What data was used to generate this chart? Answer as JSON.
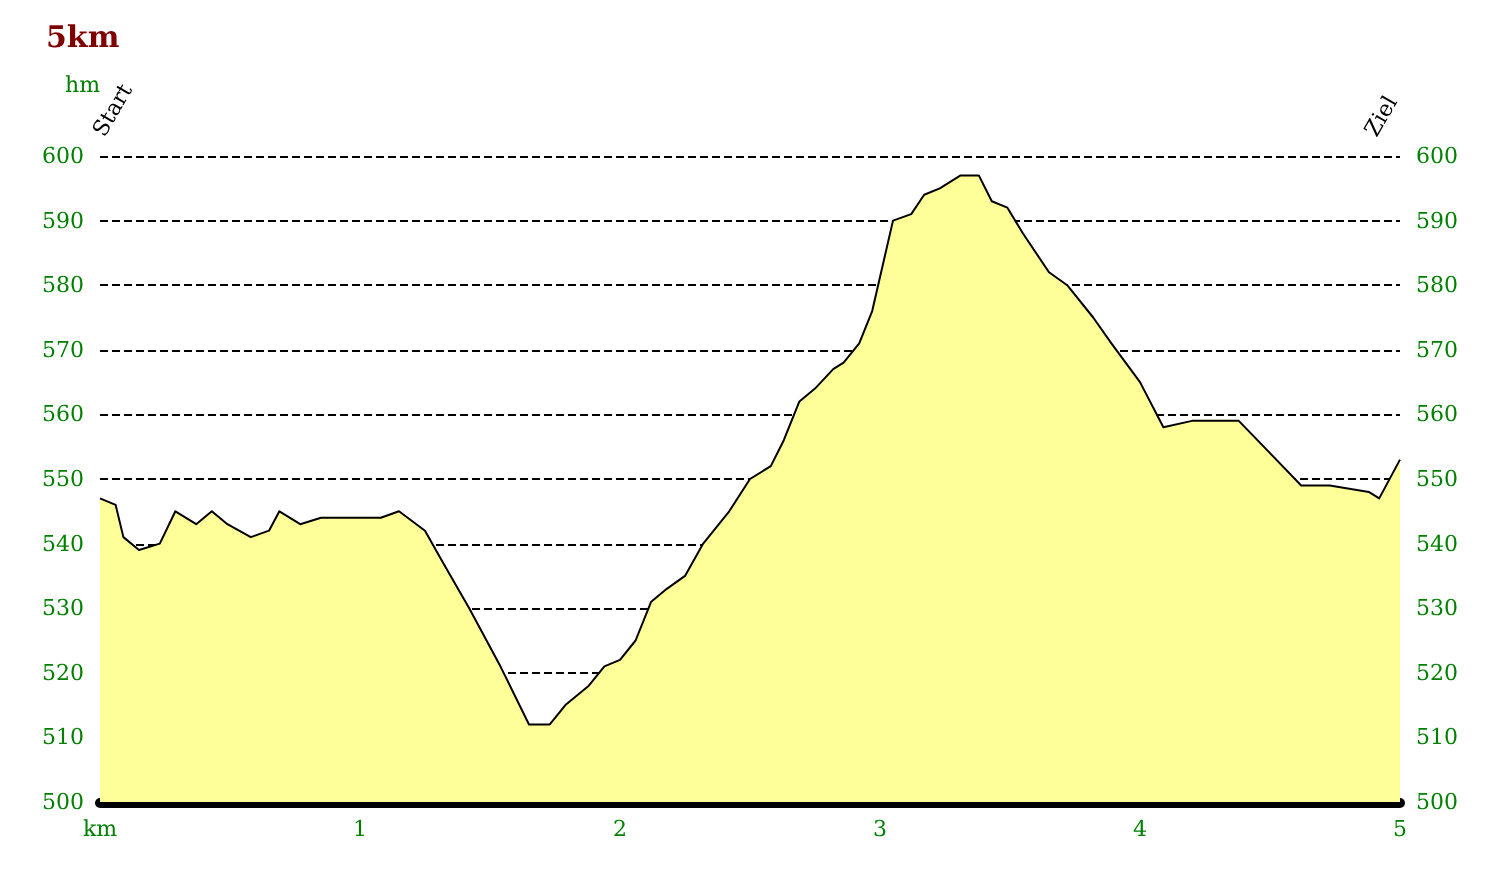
{
  "chart_data": {
    "type": "area",
    "title": "5km",
    "ylabel": "hm",
    "annotations": [
      "Start",
      "Ziel"
    ],
    "series": [
      {
        "color": "#ffff99",
        "x": [
          0,
          0.06,
          0.09,
          0.15,
          0.23,
          0.29,
          0.37,
          0.43,
          0.49,
          0.58,
          0.65,
          0.69,
          0.77,
          0.85,
          0.97,
          1.08,
          1.15,
          1.25,
          1.32,
          1.42,
          1.54,
          1.65,
          1.73,
          1.79,
          1.88,
          1.94,
          2.0,
          2.06,
          2.12,
          2.18,
          2.25,
          2.32,
          2.42,
          2.5,
          2.58,
          2.63,
          2.69,
          2.75,
          2.82,
          2.86,
          2.92,
          2.97,
          3.05,
          3.12,
          3.17,
          3.23,
          3.31,
          3.38,
          3.43,
          3.49,
          3.55,
          3.65,
          3.72,
          3.82,
          3.89,
          4.0,
          4.09,
          4.2,
          4.38,
          4.5,
          4.62,
          4.73,
          4.88,
          4.92,
          5
        ],
        "values": [
          547,
          546,
          541,
          539,
          540,
          545,
          543,
          545,
          543,
          541,
          542,
          545,
          543,
          544,
          544,
          544,
          545,
          542,
          537,
          530,
          521,
          512,
          512,
          515,
          518,
          521,
          522,
          525,
          531,
          533,
          535,
          540,
          545,
          550,
          552,
          556,
          562,
          564,
          567,
          568,
          571,
          576,
          590,
          591,
          594,
          595,
          597,
          597,
          593,
          592,
          588,
          582,
          580,
          575,
          571,
          565,
          558,
          559,
          559,
          554,
          549,
          549,
          548,
          547,
          553
        ]
      }
    ],
    "xlim": [
      0,
      5
    ],
    "xticks": [
      {
        "value": 0,
        "label": "km"
      },
      1,
      2,
      3,
      4,
      5
    ],
    "ylim": [
      500,
      600
    ],
    "yticks": [
      500,
      510,
      520,
      530,
      540,
      550,
      560,
      570,
      580,
      590,
      600
    ],
    "y2lim": [
      500,
      600
    ],
    "y2ticks": [
      500,
      510,
      520,
      530,
      540,
      550,
      560,
      570,
      580,
      590,
      600
    ],
    "grid": "y",
    "marker": "none",
    "line_style": "solid"
  }
}
